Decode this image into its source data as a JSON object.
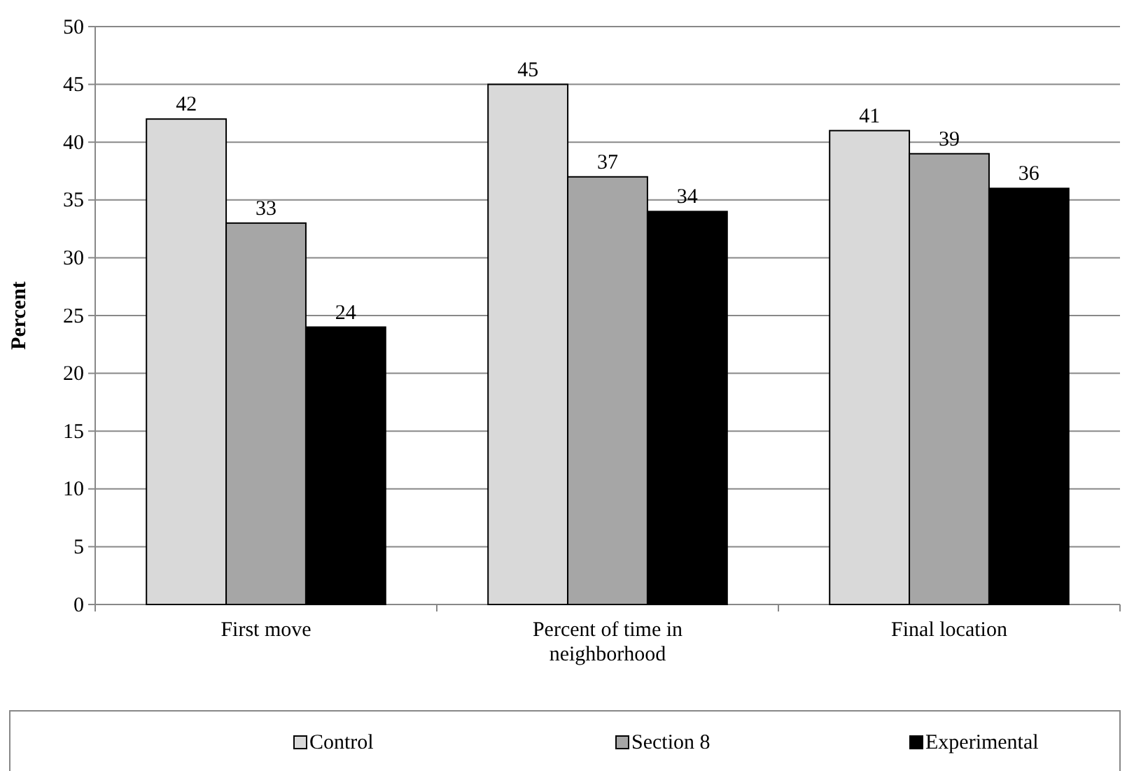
{
  "chart_data": {
    "type": "bar",
    "ylabel": "Percent",
    "categories": [
      "First move",
      "Percent of time in neighborhood",
      "Final location"
    ],
    "series": [
      {
        "name": "Control",
        "color": "#d9d9d9",
        "values": [
          42,
          45,
          41
        ]
      },
      {
        "name": "Section 8",
        "color": "#a6a6a6",
        "values": [
          33,
          37,
          39
        ]
      },
      {
        "name": "Experimental",
        "color": "#000000",
        "values": [
          24,
          34,
          36
        ]
      }
    ],
    "ylim": [
      0,
      50
    ],
    "yticks": [
      0,
      5,
      10,
      15,
      20,
      25,
      30,
      35,
      40,
      45,
      50
    ],
    "grid": "y",
    "data_labels": true,
    "legend": "bottom"
  }
}
